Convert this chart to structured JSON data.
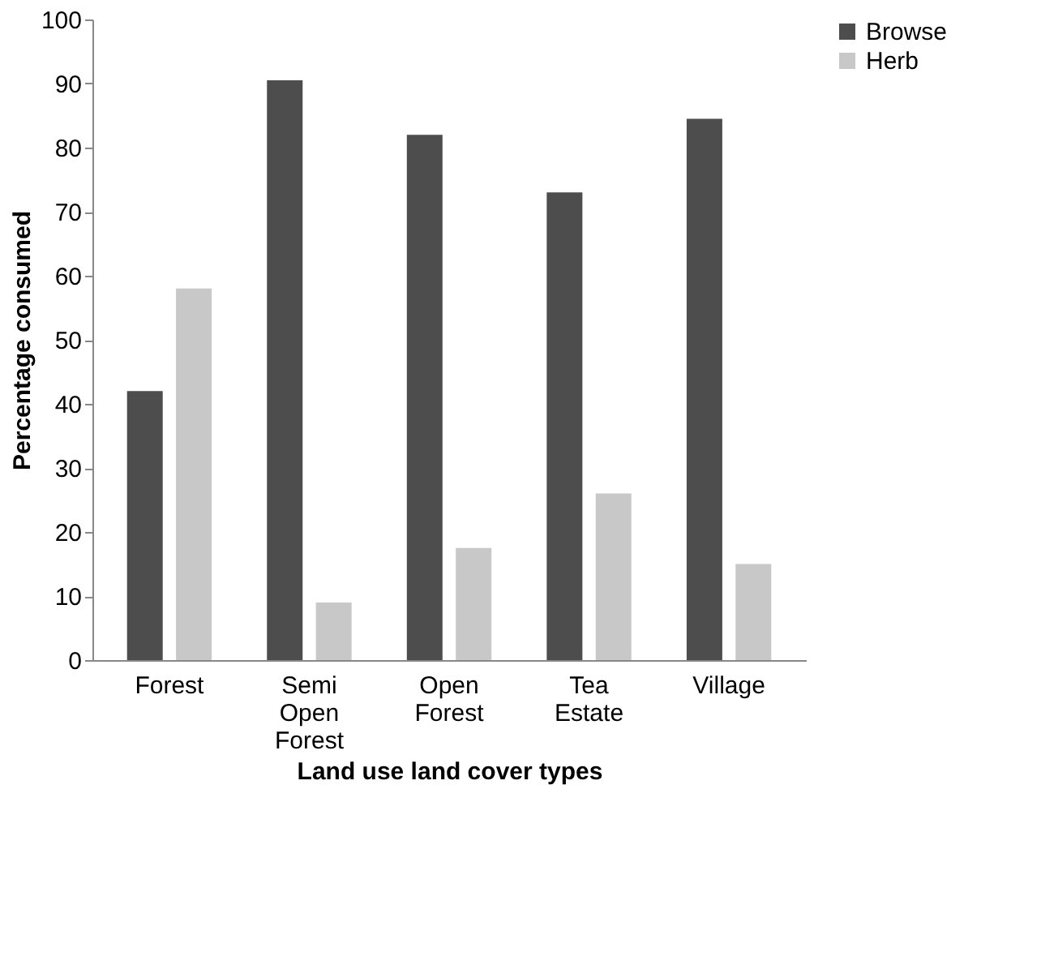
{
  "chart_data": {
    "type": "bar",
    "xlabel": "Land use land cover types",
    "ylabel": "Percentage consumed",
    "categories": [
      "Forest",
      "Semi Open Forest",
      "Open Forest",
      "Tea Estate",
      "Village"
    ],
    "series": [
      {
        "name": "Browse",
        "color": "#4d4d4d",
        "values": [
          42,
          90.5,
          82,
          73,
          84.5
        ]
      },
      {
        "name": "Herb",
        "color": "#c8c8c8",
        "values": [
          58,
          9,
          17.5,
          26,
          15
        ]
      }
    ],
    "ylim": [
      0,
      100
    ],
    "yticks": [
      0,
      10,
      20,
      30,
      40,
      50,
      60,
      70,
      80,
      90,
      100
    ],
    "grid": false,
    "legend": "right"
  }
}
